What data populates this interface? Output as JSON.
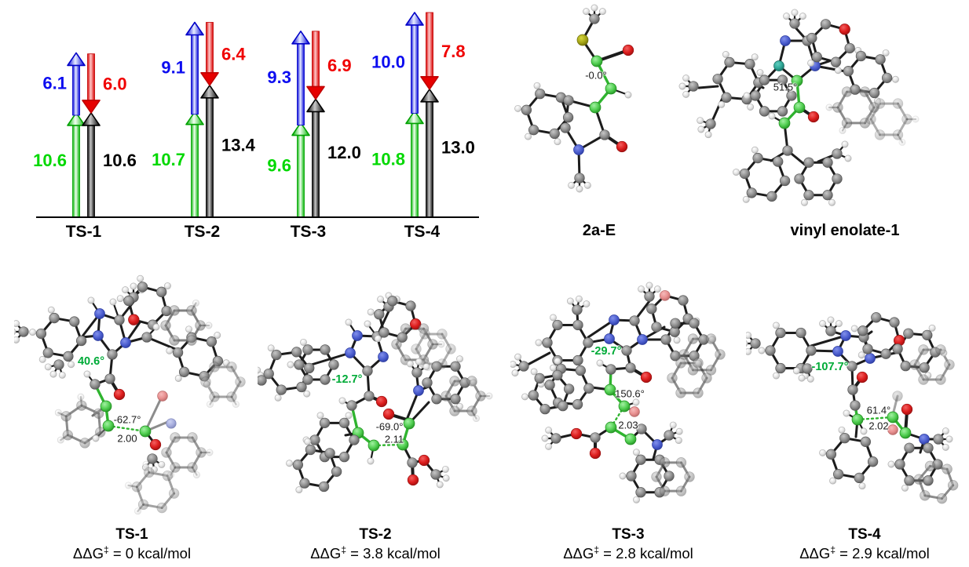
{
  "chart_data": {
    "type": "bar",
    "subtype": "stacked-arrow-energy-diagram",
    "categories": [
      "TS-1",
      "TS-2",
      "TS-3",
      "TS-4"
    ],
    "series": [
      {
        "name": "green-up-arrow",
        "color": "#00d200",
        "direction": "up",
        "column": "left",
        "values": [
          10.6,
          10.7,
          9.6,
          10.8
        ]
      },
      {
        "name": "blue-up-arrow",
        "color": "#0000ee",
        "direction": "up",
        "column": "left",
        "stacked_on": "green-up-arrow",
        "values": [
          6.1,
          9.1,
          9.3,
          10.0
        ]
      },
      {
        "name": "black-up-arrow",
        "color": "#111111",
        "direction": "up",
        "column": "right",
        "values": [
          10.6,
          13.4,
          12.0,
          13.0
        ]
      },
      {
        "name": "red-down-arrow",
        "color": "#ee0000",
        "direction": "down",
        "column": "right",
        "meets": "tip of black arrow",
        "values": [
          6.0,
          6.4,
          6.9,
          7.8
        ]
      }
    ],
    "ylim": [
      0,
      20.8
    ],
    "grid": false,
    "legend": false,
    "axis": "baseline only, no ticks or axis labels"
  },
  "top_molecules": [
    {
      "label": "2a-E",
      "annotation": "-0.0°"
    },
    {
      "label": "vinyl enolate-1",
      "annotation": "51.5°"
    }
  ],
  "ts_structures": [
    {
      "label": "TS-1",
      "angle_green": "40.6°",
      "angle": "-62.7°",
      "distance": "2.00",
      "dg_prefix": "ΔΔG",
      "dg_sup": "‡",
      "dg_rest": " = 0 kcal/mol"
    },
    {
      "label": "TS-2",
      "angle_green": "-12.7°",
      "angle": "-69.0°",
      "distance": "2.11",
      "dg_prefix": "ΔΔG",
      "dg_sup": "‡",
      "dg_rest": " = 3.8 kcal/mol"
    },
    {
      "label": "TS-3",
      "angle_green": "-29.7°",
      "angle": "150.6°",
      "distance": "2.03",
      "dg_prefix": "ΔΔG",
      "dg_sup": "‡",
      "dg_rest": " = 2.8 kcal/mol"
    },
    {
      "label": "TS-4",
      "angle_green": "-107.7°",
      "angle": "61.4°",
      "distance": "2.02",
      "dg_prefix": "ΔΔG",
      "dg_sup": "‡",
      "dg_rest": " = 2.9 kcal/mol"
    }
  ],
  "atom_colors": {
    "carbon": "#9a9a9a",
    "hydrogen": "#f0f0f0",
    "nitrogen": "#4d5fd0",
    "oxygen": "#e02020",
    "sulfur": "#b4b400",
    "highlighted_carbon": "#55d055"
  }
}
